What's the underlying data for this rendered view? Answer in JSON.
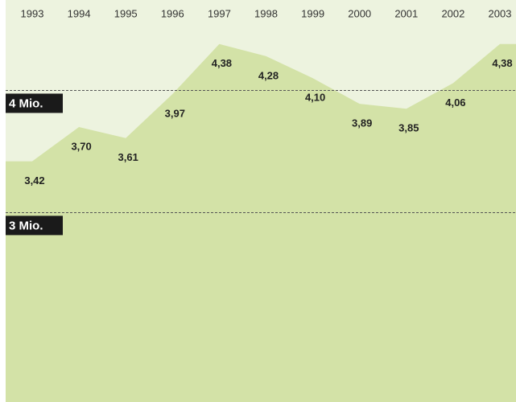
{
  "chart_data": {
    "type": "area",
    "categories": [
      "1993",
      "1994",
      "1995",
      "1996",
      "1997",
      "1998",
      "1999",
      "2000",
      "2001",
      "2002",
      "2003"
    ],
    "values": [
      3.42,
      3.7,
      3.61,
      3.97,
      4.38,
      4.28,
      4.1,
      3.89,
      3.85,
      4.06,
      4.38
    ],
    "value_labels": [
      "3,42",
      "3,70",
      "3,61",
      "3,97",
      "4,38",
      "4,28",
      "4,10",
      "3,89",
      "3,85",
      "4,06",
      "4,38"
    ],
    "color": "#d3e2a7",
    "ylim": [
      1.45,
      4.74
    ],
    "yticks": [
      {
        "value": 3,
        "label": "3 Mio."
      },
      {
        "value": 4,
        "label": "4 Mio."
      }
    ],
    "grid": true
  }
}
